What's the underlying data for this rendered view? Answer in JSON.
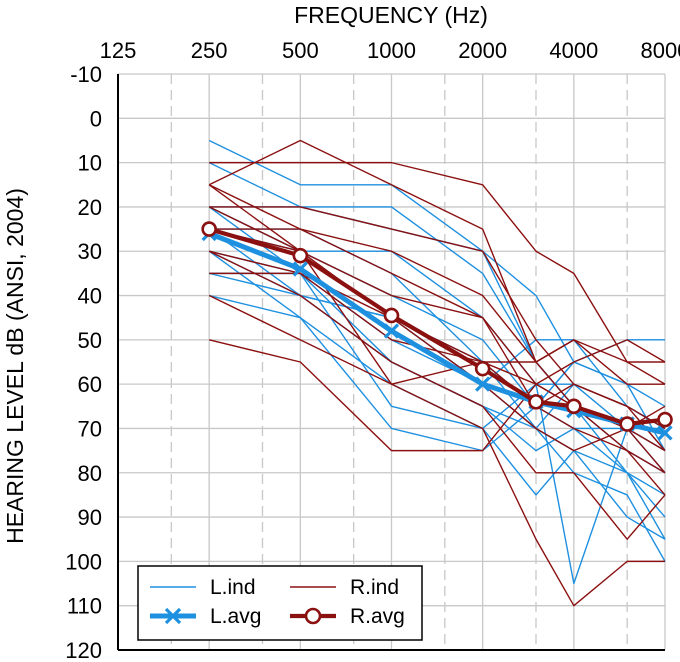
{
  "chart_data": {
    "type": "line",
    "title": "FREQUENCY (Hz)",
    "xlabel": "FREQUENCY (Hz)",
    "ylabel": "HEARING LEVEL dB (ANSI, 2004)",
    "x_tick_labels": [
      "125",
      "250",
      "500",
      "1000",
      "2000",
      "4000",
      "8000"
    ],
    "x_ticks": [
      125,
      250,
      500,
      1000,
      2000,
      4000,
      8000
    ],
    "x_data_points": [
      250,
      500,
      1000,
      2000,
      3000,
      4000,
      6000,
      8000
    ],
    "x_scale": "log2",
    "xlim": [
      125,
      8000
    ],
    "y_tick_labels": [
      "-10",
      "0",
      "10",
      "20",
      "30",
      "40",
      "50",
      "60",
      "70",
      "80",
      "90",
      "100",
      "110",
      "120"
    ],
    "ylim": [
      -10,
      120
    ],
    "y_inverted": true,
    "grid": true,
    "legend": {
      "position": "bottom-left",
      "entries": [
        {
          "label": "L.ind",
          "series": "left_individual"
        },
        {
          "label": "R.ind",
          "series": "right_individual"
        },
        {
          "label": "L.avg",
          "series": "left_average"
        },
        {
          "label": "R.avg",
          "series": "right_average"
        }
      ]
    },
    "colors": {
      "left": "#1e90e0",
      "right": "#8b1010",
      "grid": "#c8c8c8",
      "axis": "#000000"
    },
    "left_individual": [
      [
        5,
        15,
        15,
        30,
        40,
        55,
        60,
        75
      ],
      [
        10,
        20,
        20,
        35,
        55,
        65,
        80,
        90
      ],
      [
        20,
        20,
        25,
        30,
        55,
        65,
        75,
        80
      ],
      [
        20,
        30,
        30,
        45,
        60,
        60,
        70,
        70
      ],
      [
        25,
        25,
        35,
        55,
        65,
        70,
        80,
        85
      ],
      [
        25,
        30,
        40,
        50,
        65,
        55,
        60,
        65
      ],
      [
        30,
        35,
        50,
        60,
        70,
        60,
        65,
        70
      ],
      [
        30,
        40,
        55,
        65,
        75,
        70,
        70,
        75
      ],
      [
        35,
        40,
        45,
        55,
        70,
        75,
        80,
        95
      ],
      [
        35,
        35,
        55,
        65,
        70,
        80,
        85,
        100
      ],
      [
        40,
        45,
        60,
        70,
        85,
        75,
        90,
        95
      ],
      [
        20,
        35,
        65,
        70,
        60,
        105,
        70,
        80
      ],
      [
        30,
        45,
        70,
        75,
        65,
        55,
        50,
        50
      ],
      [
        25,
        40,
        45,
        60,
        50,
        50,
        65,
        70
      ]
    ],
    "right_individual": [
      [
        10,
        10,
        10,
        15,
        30,
        35,
        55,
        60
      ],
      [
        15,
        5,
        15,
        25,
        55,
        50,
        55,
        55
      ],
      [
        15,
        25,
        30,
        40,
        55,
        50,
        60,
        60
      ],
      [
        20,
        20,
        25,
        30,
        50,
        60,
        65,
        70
      ],
      [
        25,
        25,
        35,
        45,
        60,
        65,
        75,
        80
      ],
      [
        20,
        30,
        45,
        55,
        60,
        65,
        70,
        80
      ],
      [
        30,
        35,
        50,
        55,
        65,
        70,
        75,
        85
      ],
      [
        35,
        35,
        45,
        60,
        70,
        75,
        70,
        75
      ],
      [
        30,
        40,
        55,
        65,
        80,
        80,
        95,
        85
      ],
      [
        40,
        50,
        60,
        70,
        95,
        110,
        100,
        100
      ],
      [
        50,
        55,
        75,
        75,
        60,
        55,
        50,
        55
      ],
      [
        15,
        30,
        60,
        55,
        55,
        65,
        70,
        65
      ],
      [
        25,
        30,
        40,
        45,
        65,
        60,
        65,
        75
      ]
    ],
    "left_average": [
      26,
      34,
      48,
      60,
      64,
      66,
      69,
      71
    ],
    "right_average": [
      25,
      31,
      44.5,
      56.5,
      64,
      65,
      69,
      68
    ]
  }
}
